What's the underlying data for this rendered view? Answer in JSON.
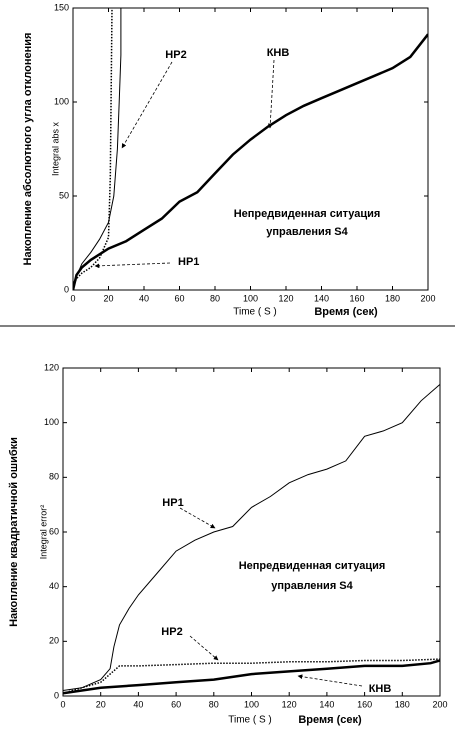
{
  "chart_data": [
    {
      "type": "line",
      "y_label": "Накопление абсолютного угла отклонения",
      "y_sublabel": "Integral abs x",
      "x_label": "Time ( S )",
      "x_label_ru": "Время (сек)",
      "xlim": [
        0,
        200
      ],
      "xticks": [
        0,
        20,
        40,
        60,
        80,
        100,
        120,
        140,
        160,
        180,
        200
      ],
      "ylim": [
        0,
        150
      ],
      "yticks": [
        0,
        50,
        100,
        150
      ],
      "series": [
        {
          "color": "#000000",
          "line_width": 2.5,
          "line_style": "solid",
          "x": [
            0,
            2,
            5,
            10,
            20,
            30,
            40,
            50,
            60,
            70,
            80,
            90,
            100,
            110,
            120,
            130,
            140,
            150,
            160,
            170,
            180,
            190,
            200
          ],
          "values": [
            0,
            8,
            12,
            16,
            22,
            26,
            32,
            38,
            47,
            52,
            62,
            72,
            80,
            87,
            93,
            98,
            102,
            106,
            110,
            114,
            118,
            124,
            136
          ]
        },
        {
          "color": "#000000",
          "line_width": 1.5,
          "line_style": "dotted",
          "x": [
            0,
            2,
            5,
            10,
            15,
            20,
            21,
            22
          ],
          "values": [
            2,
            6,
            9,
            12,
            17,
            28,
            60,
            150
          ]
        },
        {
          "color": "#000000",
          "line_width": 1,
          "line_style": "solid",
          "x": [
            0,
            5,
            10,
            15,
            20,
            23,
            25,
            26,
            27,
            27
          ],
          "values": [
            3,
            14,
            20,
            27,
            36,
            50,
            75,
            100,
            125,
            150
          ]
        }
      ],
      "annotations": [
        "HP2",
        "КНВ",
        "HP1",
        "Непредвиденная ситуация",
        "управления S4"
      ]
    },
    {
      "type": "line",
      "y_label": "Накопление квадратичной ошибки",
      "y_sublabel": "Integral error²",
      "x_label": "Time ( S )",
      "x_label_ru": "Время (сек)",
      "xlim": [
        0,
        200
      ],
      "xticks": [
        0,
        20,
        40,
        60,
        80,
        100,
        120,
        140,
        160,
        180,
        200
      ],
      "ylim": [
        0,
        120
      ],
      "yticks": [
        0,
        20,
        40,
        60,
        80,
        100,
        120
      ],
      "series": [
        {
          "color": "#000000",
          "line_width": 1,
          "line_style": "solid",
          "x": [
            0,
            10,
            20,
            25,
            27,
            30,
            35,
            40,
            50,
            60,
            70,
            80,
            90,
            100,
            110,
            120,
            130,
            140,
            150,
            160,
            170,
            180,
            190,
            200
          ],
          "values": [
            2,
            3,
            6,
            10,
            18,
            26,
            32,
            37,
            45,
            53,
            57,
            60,
            62,
            69,
            73,
            78,
            81,
            83,
            86,
            95,
            97,
            100,
            108,
            114
          ]
        },
        {
          "color": "#000000",
          "line_width": 1.5,
          "line_style": "dotted",
          "x": [
            0,
            10,
            20,
            25,
            30,
            40,
            60,
            80,
            100,
            120,
            140,
            160,
            180,
            200
          ],
          "values": [
            1,
            3,
            5,
            8,
            11,
            11,
            11.5,
            12,
            12,
            12.5,
            12.5,
            13,
            13,
            13.5
          ]
        },
        {
          "color": "#000000",
          "line_width": 2.5,
          "line_style": "solid",
          "x": [
            0,
            20,
            40,
            60,
            80,
            100,
            120,
            140,
            160,
            180,
            195,
            200
          ],
          "values": [
            1,
            3,
            4,
            5,
            6,
            8,
            9,
            10,
            11,
            11,
            12,
            13
          ]
        }
      ],
      "annotations": [
        "HP1",
        "HP2",
        "КНВ",
        "Непредвиденная ситуация",
        "управления S4"
      ]
    }
  ]
}
